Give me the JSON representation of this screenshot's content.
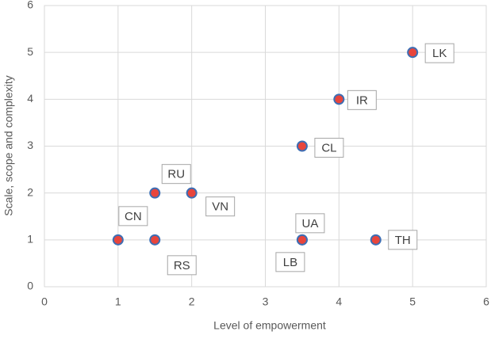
{
  "chart_data": {
    "type": "scatter",
    "x_label": "Level of empowerment",
    "y_label": "Scale, scope and complexity",
    "x": [
      1,
      1.5,
      1.5,
      2,
      3.5,
      3.5,
      3.5,
      4.5,
      4,
      5
    ],
    "y": [
      1,
      1,
      2,
      2,
      3,
      1,
      1,
      1,
      4,
      5
    ],
    "labels": [
      "CN",
      "RS",
      "RU",
      "VN",
      "CL",
      "UA",
      "LB",
      "TH",
      "IR",
      "LK"
    ],
    "color": "#e8453c",
    "edge_color": "#3d6eb4",
    "xlim": [
      0,
      6
    ],
    "xticks": [
      0,
      1,
      2,
      3,
      4,
      5,
      6
    ],
    "ylim": [
      0,
      6
    ],
    "yticks": [
      0,
      1,
      2,
      3,
      4,
      5,
      6
    ],
    "grid": true
  }
}
